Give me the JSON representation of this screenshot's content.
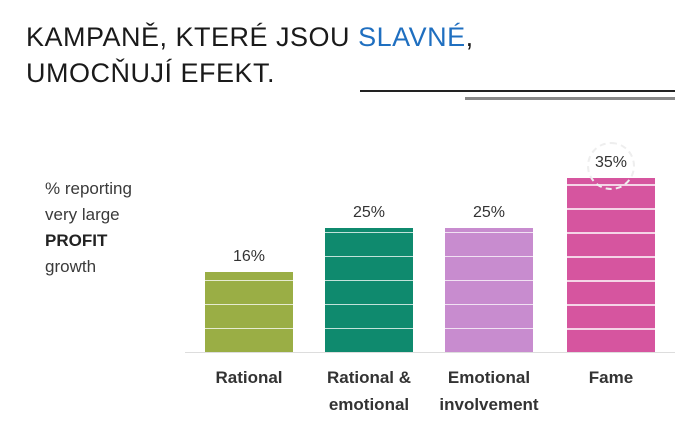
{
  "chart_data": {
    "type": "bar",
    "title_parts": [
      "KAMPANĚ, KTERÉ JSOU",
      "SLAVNÉ",
      ",",
      "UMOCŇUJÍ EFEKT."
    ],
    "y_label_lines": [
      "% reporting",
      "very large",
      "PROFIT",
      "growth"
    ],
    "categories": [
      "Rational",
      "Rational & emotional",
      "Emotional involvement",
      "Fame"
    ],
    "series": [
      {
        "name": null,
        "colors": [
          "#9aae45",
          "#0f8a6e",
          "#c88ccf",
          "#d6559f"
        ],
        "values": [
          16,
          25,
          25,
          35
        ],
        "value_labels": [
          "16%",
          "25%",
          "25%",
          "35%"
        ]
      }
    ]
  }
}
